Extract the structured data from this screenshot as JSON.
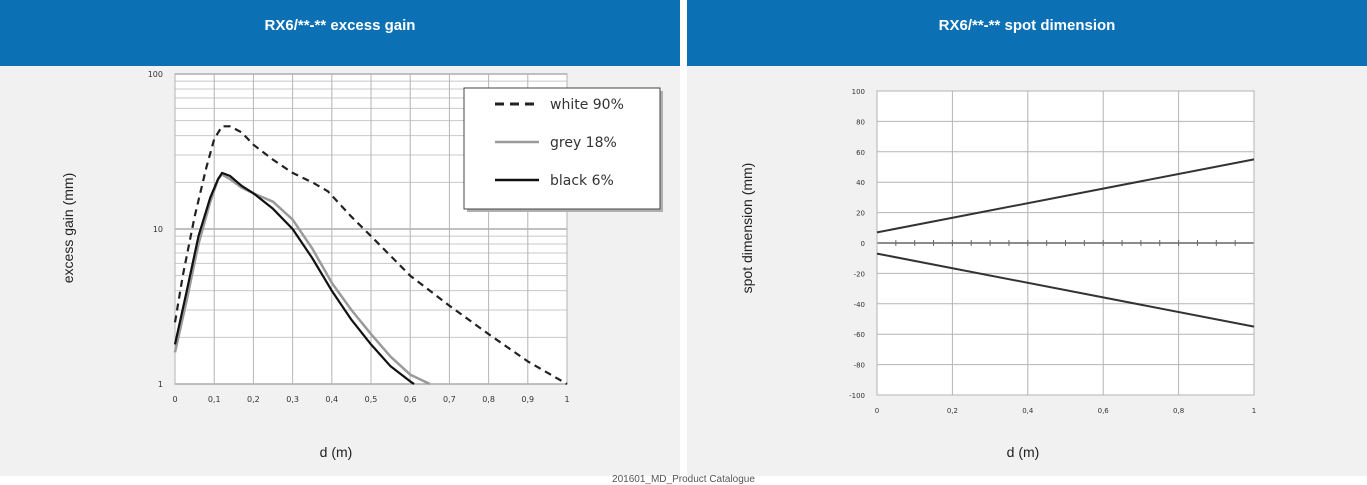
{
  "left_panel": {
    "title": "RX6/**-** excess gain",
    "ylabel": "excess gain (mm)",
    "xlabel": "d (m)"
  },
  "right_panel": {
    "title": "RX6/**-** spot dimension",
    "ylabel": "spot dimension (mm)",
    "xlabel": "d (m)"
  },
  "footer": "201601_MD_Product Catalogue",
  "chart_data": [
    {
      "type": "line",
      "title": "RX6/**-** excess gain",
      "xlabel": "d (m)",
      "ylabel": "excess gain (mm)",
      "xlim": [
        0,
        1
      ],
      "ylim": [
        1,
        100
      ],
      "yscale": "log",
      "grid": true,
      "legend_position": "top-right",
      "x_ticks": [
        "0",
        "0,1",
        "0,2",
        "0,3",
        "0,4",
        "0,5",
        "0,6",
        "0,7",
        "0,8",
        "0,9",
        "1"
      ],
      "y_ticks": [
        "1",
        "10",
        "100"
      ],
      "series": [
        {
          "name": "white 90%",
          "style": "dashed",
          "color": "#222222",
          "x": [
            0,
            0.02,
            0.05,
            0.08,
            0.1,
            0.12,
            0.14,
            0.17,
            0.2,
            0.25,
            0.3,
            0.35,
            0.39,
            0.45,
            0.5,
            0.6,
            0.7,
            0.8,
            0.9,
            1.0
          ],
          "y": [
            2.5,
            5,
            12,
            25,
            38,
            46,
            46,
            42,
            35,
            28,
            23,
            20,
            17.5,
            12,
            9,
            5,
            3.2,
            2.1,
            1.4,
            1.0
          ]
        },
        {
          "name": "grey 18%",
          "style": "solid",
          "color": "#9a9a9a",
          "x": [
            0,
            0.03,
            0.06,
            0.09,
            0.11,
            0.12,
            0.14,
            0.17,
            0.2,
            0.25,
            0.3,
            0.35,
            0.4,
            0.45,
            0.5,
            0.55,
            0.6,
            0.65
          ],
          "y": [
            1.6,
            3.5,
            8,
            15,
            21,
            22.5,
            21,
            18.5,
            17,
            15,
            11.5,
            7.5,
            4.5,
            3.0,
            2.1,
            1.5,
            1.15,
            1.0
          ]
        },
        {
          "name": "black 6%",
          "style": "solid",
          "color": "#111111",
          "x": [
            0,
            0.03,
            0.06,
            0.09,
            0.11,
            0.12,
            0.14,
            0.17,
            0.2,
            0.25,
            0.3,
            0.35,
            0.4,
            0.45,
            0.5,
            0.55,
            0.6,
            0.61
          ],
          "y": [
            1.8,
            4,
            9,
            16,
            21,
            23,
            22,
            19,
            17,
            13.5,
            10,
            6.5,
            4.0,
            2.6,
            1.8,
            1.3,
            1.04,
            1.0
          ]
        }
      ]
    },
    {
      "type": "line",
      "title": "RX6/**-** spot dimension",
      "xlabel": "d (m)",
      "ylabel": "spot dimension (mm)",
      "xlim": [
        0,
        1
      ],
      "ylim": [
        -100,
        100
      ],
      "grid": true,
      "x_ticks": [
        "0",
        "0,2",
        "0,4",
        "0,6",
        "0,8",
        "1"
      ],
      "y_ticks": [
        "100",
        "80",
        "60",
        "40",
        "20",
        "0",
        "-20",
        "-40",
        "-60",
        "-80",
        "-100"
      ],
      "series": [
        {
          "color": "#333333",
          "x": [
            0,
            1
          ],
          "y": [
            7,
            55
          ]
        },
        {
          "color": "#333333",
          "x": [
            0,
            1
          ],
          "y": [
            -7,
            -55
          ]
        }
      ]
    }
  ]
}
